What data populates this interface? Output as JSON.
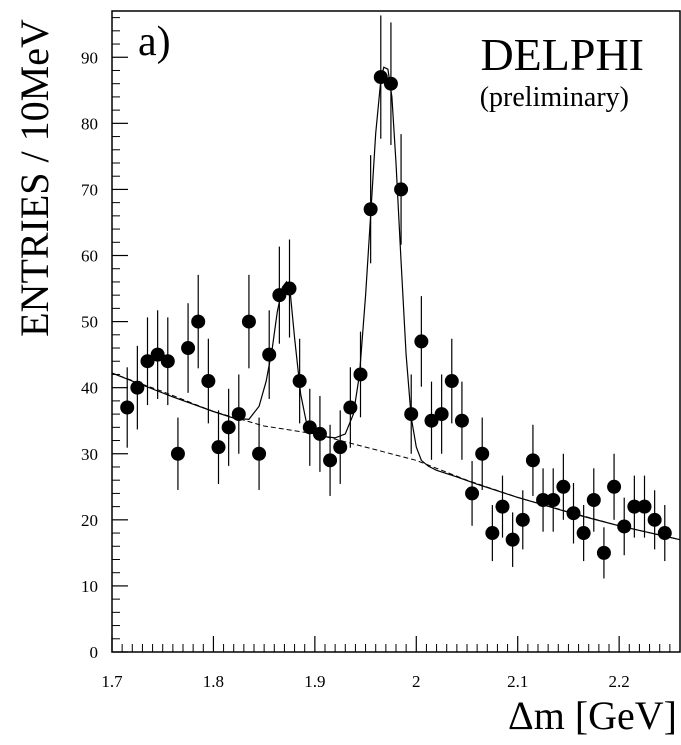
{
  "chart_data": {
    "type": "scatter",
    "panel_label": "a)",
    "experiment_label": "DELPHI",
    "status_label": "(preliminary)",
    "xlabel": "Δm [GeV]",
    "ylabel": "ENTRIES / 10MeV",
    "xlim": [
      1.7,
      2.26
    ],
    "ylim": [
      0,
      97
    ],
    "x_ticks": [
      1.7,
      1.8,
      1.9,
      2.0,
      2.1,
      2.2
    ],
    "x_tick_labels": [
      "1.7",
      "1.8",
      "1.9",
      "2",
      "2.1",
      "2.2"
    ],
    "y_ticks": [
      0,
      10,
      20,
      30,
      40,
      50,
      60,
      70,
      80,
      90
    ],
    "y_tick_labels": [
      "0",
      "10",
      "20",
      "30",
      "40",
      "50",
      "60",
      "70",
      "80",
      "90"
    ],
    "grid": false,
    "legend": "none",
    "series": [
      {
        "kind": "data-points-with-errors",
        "x": [
          1.715,
          1.725,
          1.735,
          1.745,
          1.755,
          1.765,
          1.775,
          1.785,
          1.795,
          1.805,
          1.815,
          1.825,
          1.835,
          1.845,
          1.855,
          1.865,
          1.875,
          1.885,
          1.895,
          1.905,
          1.915,
          1.925,
          1.935,
          1.945,
          1.955,
          1.965,
          1.975,
          1.985,
          1.995,
          2.005,
          2.015,
          2.025,
          2.035,
          2.045,
          2.055,
          2.065,
          2.075,
          2.085,
          2.095,
          2.105,
          2.115,
          2.125,
          2.135,
          2.145,
          2.155,
          2.165,
          2.175,
          2.185,
          2.195,
          2.205,
          2.215,
          2.225,
          2.235,
          2.245
        ],
        "y": [
          37,
          40,
          44,
          45,
          44,
          30,
          46,
          50,
          41,
          31,
          34,
          36,
          50,
          30,
          45,
          54,
          55,
          41,
          34,
          33,
          29,
          31,
          37,
          42,
          67,
          87,
          86,
          70,
          36,
          47,
          35,
          36,
          41,
          35,
          24,
          30,
          18,
          22,
          17,
          20,
          29,
          23,
          23,
          25,
          21,
          18,
          23,
          15,
          25,
          19,
          22,
          22,
          20,
          18
        ]
      },
      {
        "kind": "fit-curve",
        "style": "solid",
        "x": [
          1.7,
          1.72,
          1.74,
          1.76,
          1.78,
          1.8,
          1.82,
          1.835,
          1.845,
          1.852,
          1.858,
          1.863,
          1.868,
          1.872,
          1.876,
          1.88,
          1.886,
          1.892,
          1.9,
          1.91,
          1.92,
          1.93,
          1.938,
          1.944,
          1.95,
          1.955,
          1.96,
          1.965,
          1.968,
          1.972,
          1.976,
          1.98,
          1.985,
          1.99,
          1.995,
          2.0,
          2.005,
          2.012,
          2.02,
          2.04,
          2.06,
          2.08,
          2.1,
          2.12,
          2.14,
          2.16,
          2.18,
          2.2,
          2.22,
          2.24,
          2.26
        ],
        "y": [
          42.2,
          41.0,
          39.8,
          38.6,
          37.5,
          36.4,
          35.4,
          35.2,
          37.2,
          41.0,
          46.0,
          51.5,
          55.2,
          56.0,
          54.0,
          47.5,
          39.0,
          34.5,
          33.0,
          32.6,
          32.4,
          33.0,
          36.0,
          42.0,
          54.0,
          66.0,
          78.5,
          86.5,
          88.5,
          88.2,
          84.0,
          74.0,
          59.0,
          45.0,
          35.5,
          31.0,
          29.0,
          28.1,
          27.5,
          26.5,
          25.4,
          24.4,
          23.4,
          22.5,
          21.6,
          20.7,
          19.9,
          19.1,
          18.4,
          17.7,
          17.0
        ]
      },
      {
        "kind": "background",
        "style": "dashed",
        "x": [
          1.7,
          1.75,
          1.8,
          1.85,
          1.9,
          1.95,
          2.0,
          2.05,
          2.1,
          2.15,
          2.2,
          2.26
        ],
        "y": [
          42.2,
          39.4,
          36.4,
          34.2,
          33.0,
          31.0,
          29.0,
          26.0,
          23.4,
          21.2,
          19.1,
          17.0
        ]
      }
    ]
  }
}
